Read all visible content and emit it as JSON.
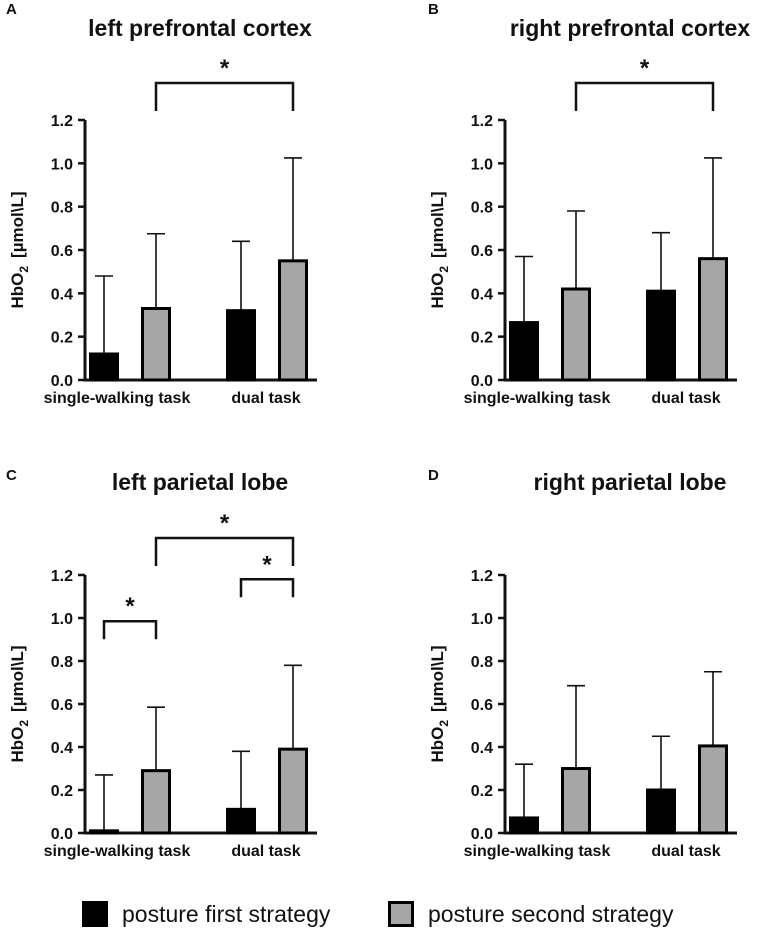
{
  "chart_data": [
    {
      "panel": "A",
      "type": "bar",
      "title": "left prefrontal cortex",
      "ylabel": "HbO2 [µmol\\L]",
      "ylabel_main": "HbO",
      "ylabel_sub": "2",
      "ylabel_unit": "[µmol\\L]",
      "ylim": [
        0,
        1.2
      ],
      "yticks": [
        "0.0",
        "0.2",
        "0.4",
        "0.6",
        "0.8",
        "1.0",
        "1.2"
      ],
      "categories": [
        "single-walking task",
        "dual task"
      ],
      "series": [
        {
          "name": "posture first strategy",
          "values": [
            0.12,
            0.32
          ],
          "errors": [
            0.48,
            0.64
          ]
        },
        {
          "name": "posture second strategy",
          "values": [
            0.33,
            0.55
          ],
          "errors": [
            0.675,
            1.025
          ]
        }
      ],
      "significance": [
        {
          "from": "single-walking task|posture second strategy",
          "to": "dual task|posture second strategy",
          "level": "top",
          "label": "*"
        }
      ]
    },
    {
      "panel": "B",
      "type": "bar",
      "title": "right prefrontal cortex",
      "ylabel": "HbO2 [µmol\\L]",
      "ylabel_main": "HbO",
      "ylabel_sub": "2",
      "ylabel_unit": "[µmol\\L]",
      "ylim": [
        0,
        1.2
      ],
      "yticks": [
        "0.0",
        "0.2",
        "0.4",
        "0.6",
        "0.8",
        "1.0",
        "1.2"
      ],
      "categories": [
        "single-walking task",
        "dual task"
      ],
      "series": [
        {
          "name": "posture first strategy",
          "values": [
            0.265,
            0.41
          ],
          "errors": [
            0.57,
            0.68
          ]
        },
        {
          "name": "posture second strategy",
          "values": [
            0.42,
            0.56
          ],
          "errors": [
            0.78,
            1.025
          ]
        }
      ],
      "significance": [
        {
          "from": "single-walking task|posture second strategy",
          "to": "dual task|posture second strategy",
          "level": "top",
          "label": "*"
        }
      ]
    },
    {
      "panel": "C",
      "type": "bar",
      "title": "left parietal lobe",
      "ylabel": "HbO2 [µmol\\L]",
      "ylabel_main": "HbO",
      "ylabel_sub": "2",
      "ylabel_unit": "[µmol\\L]",
      "ylim": [
        0,
        1.2
      ],
      "yticks": [
        "0.0",
        "0.2",
        "0.4",
        "0.6",
        "0.8",
        "1.0",
        "1.2"
      ],
      "categories": [
        "single-walking task",
        "dual task"
      ],
      "series": [
        {
          "name": "posture first strategy",
          "values": [
            0.01,
            0.11
          ],
          "errors": [
            0.27,
            0.38
          ]
        },
        {
          "name": "posture second strategy",
          "values": [
            0.29,
            0.39
          ],
          "errors": [
            0.585,
            0.78
          ]
        }
      ],
      "significance": [
        {
          "from": "single-walking task|posture second strategy",
          "to": "dual task|posture second strategy",
          "level": "top",
          "label": "*"
        },
        {
          "from": "single-walking task|posture first strategy",
          "to": "single-walking task|posture second strategy",
          "level": "within",
          "label": "*"
        },
        {
          "from": "dual task|posture first strategy",
          "to": "dual task|posture second strategy",
          "level": "within",
          "label": "*"
        }
      ]
    },
    {
      "panel": "D",
      "type": "bar",
      "title": "right parietal lobe",
      "ylabel": "HbO2 [µmol\\L]",
      "ylabel_main": "HbO",
      "ylabel_sub": "2",
      "ylabel_unit": "[µmol\\L]",
      "ylim": [
        0,
        1.2
      ],
      "yticks": [
        "0.0",
        "0.2",
        "0.4",
        "0.6",
        "0.8",
        "1.0",
        "1.2"
      ],
      "categories": [
        "single-walking task",
        "dual task"
      ],
      "series": [
        {
          "name": "posture first strategy",
          "values": [
            0.07,
            0.2
          ],
          "errors": [
            0.32,
            0.45
          ]
        },
        {
          "name": "posture second strategy",
          "values": [
            0.3,
            0.405
          ],
          "errors": [
            0.685,
            0.75
          ]
        }
      ],
      "significance": []
    }
  ],
  "legend": {
    "items": [
      {
        "label": "posture first strategy",
        "color": "#000000"
      },
      {
        "label": "posture second strategy",
        "color": "#a6a6a6"
      }
    ]
  },
  "colors": {
    "posture first strategy": "#000000",
    "posture second strategy": "#a6a6a6"
  }
}
